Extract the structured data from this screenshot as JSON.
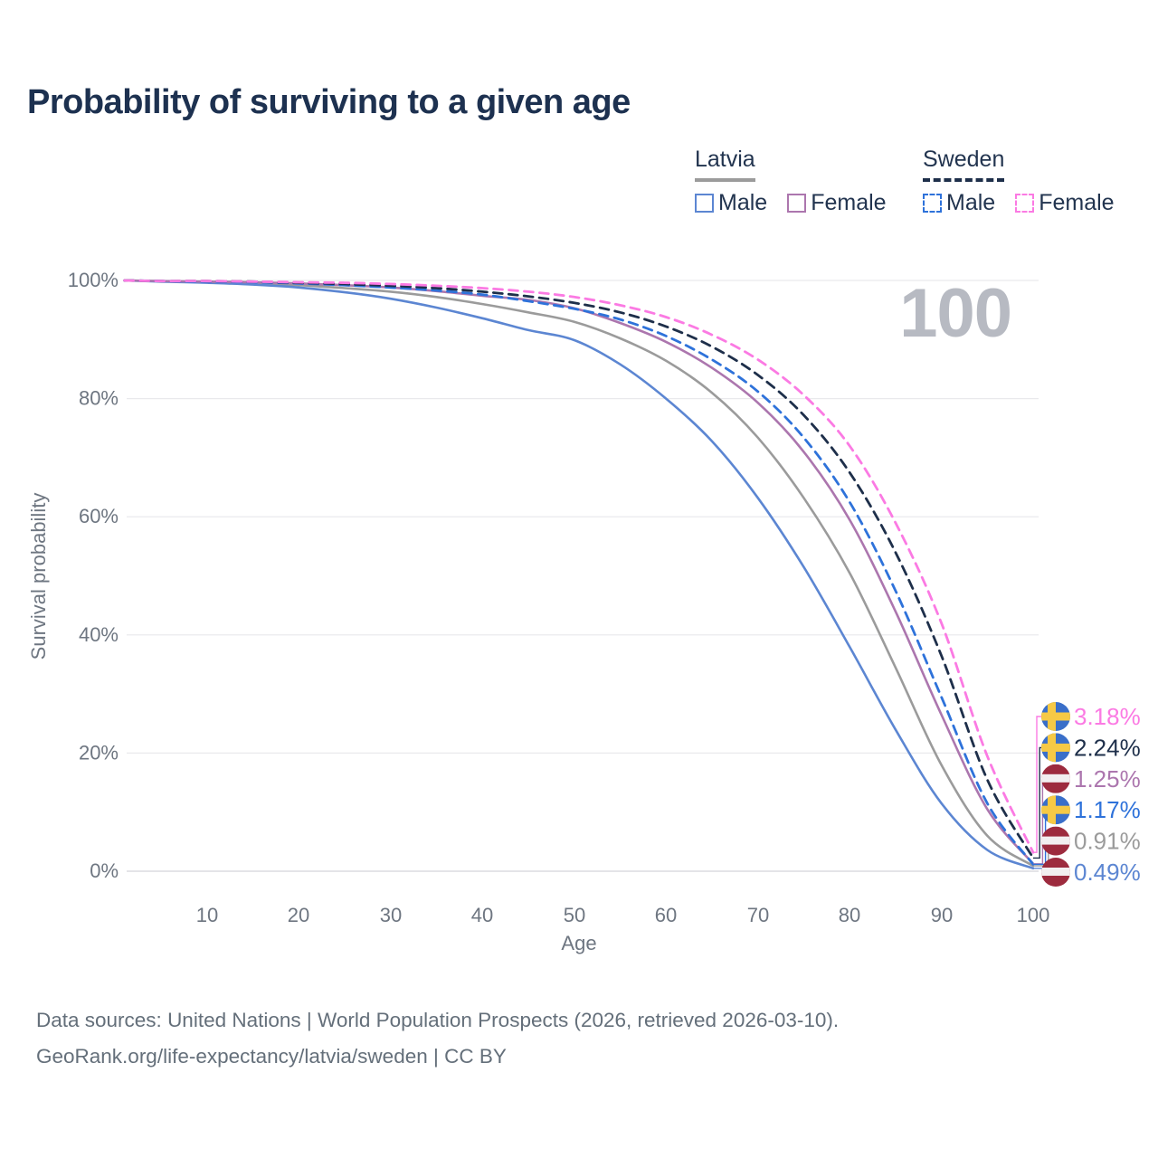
{
  "title": "Probability of surviving to a given age",
  "watermark": "100",
  "legend": {
    "latvia": {
      "country": "Latvia",
      "male": "Male",
      "female": "Female"
    },
    "sweden": {
      "country": "Sweden",
      "male": "Male",
      "female": "Female"
    }
  },
  "axes": {
    "y_label": "Survival probability",
    "x_label": "Age",
    "y_ticks": [
      "100%",
      "80%",
      "60%",
      "40%",
      "20%",
      "0%"
    ],
    "x_ticks": [
      "10",
      "20",
      "30",
      "40",
      "50",
      "60",
      "70",
      "80",
      "90",
      "100"
    ]
  },
  "footer": {
    "line1": "Data sources: United Nations | World Population Prospects (2026, retrieved 2026-03-10).",
    "line2": "GeoRank.org/life-expectancy/latvia/sweden | CC BY"
  },
  "colors": {
    "title_text": "#1d3150",
    "axis_text": "#6e7681",
    "gridline": "#e9e9ec",
    "watermark": "#b7bac2",
    "latvia_male": "#5c86d2",
    "latvia_total": "#9b9b9b",
    "latvia_female": "#ac76ae",
    "sweden_male": "#2e72da",
    "sweden_total": "#1e2f4a",
    "sweden_female": "#fb7ae3",
    "sweden_flag_blue": "#3a6fc9",
    "sweden_flag_yellow": "#f6c945",
    "latvia_flag_red": "#9d2b3e",
    "latvia_flag_white": "#f2eff0"
  },
  "chart_data": {
    "type": "line",
    "title": "Probability of surviving to a given age",
    "xlabel": "Age",
    "ylabel": "Survival probability",
    "xlim": [
      1,
      100
    ],
    "ylim": [
      0,
      100
    ],
    "grid": "horizontal",
    "legend_position": "top-right",
    "hover_age_indicator": "100",
    "x": [
      1,
      5,
      10,
      15,
      20,
      25,
      30,
      35,
      40,
      45,
      50,
      55,
      60,
      65,
      70,
      75,
      80,
      85,
      90,
      95,
      100
    ],
    "series": [
      {
        "name": "Latvia Total",
        "country": "Latvia",
        "sex": "Total",
        "style": "solid",
        "color": "#9b9b9b",
        "end_label": "0.91%",
        "end_value": 0.91,
        "flag": "latvia",
        "row": 4,
        "values": [
          100,
          99.9,
          99.7,
          99.5,
          99.2,
          98.7,
          98.1,
          97.2,
          96.0,
          94.6,
          93.0,
          90.2,
          86.4,
          81.0,
          73.4,
          63.2,
          50.5,
          34.5,
          18.0,
          6.0,
          0.91
        ]
      },
      {
        "name": "Latvia Male",
        "country": "Latvia",
        "sex": "Male",
        "style": "solid",
        "color": "#5c86d2",
        "end_label": "0.49%",
        "end_value": 0.49,
        "flag": "latvia",
        "row": 5,
        "values": [
          100,
          99.8,
          99.6,
          99.3,
          98.8,
          98.0,
          96.9,
          95.4,
          93.6,
          91.6,
          89.9,
          85.8,
          80.0,
          72.8,
          63.2,
          51.5,
          38.0,
          24.0,
          11.5,
          3.6,
          0.49
        ]
      },
      {
        "name": "Latvia Female",
        "country": "Latvia",
        "sex": "Female",
        "style": "solid",
        "color": "#ac76ae",
        "end_label": "1.25%",
        "end_value": 1.25,
        "flag": "latvia",
        "row": 2,
        "values": [
          100,
          99.9,
          99.8,
          99.7,
          99.5,
          99.2,
          98.8,
          98.2,
          97.4,
          96.7,
          95.3,
          92.8,
          89.6,
          85.2,
          79.3,
          71.0,
          59.5,
          44.0,
          26.5,
          10.5,
          1.25
        ]
      },
      {
        "name": "Sweden Male",
        "country": "Sweden",
        "sex": "Male",
        "style": "dashed",
        "color": "#2e72da",
        "end_label": "1.17%",
        "end_value": 1.17,
        "flag": "sweden",
        "row": 3,
        "values": [
          100,
          99.9,
          99.8,
          99.7,
          99.5,
          99.2,
          98.8,
          98.3,
          97.6,
          96.5,
          95.2,
          93.4,
          90.6,
          86.6,
          81.2,
          73.4,
          62.5,
          47.5,
          29.5,
          11.5,
          1.17
        ]
      },
      {
        "name": "Sweden Total",
        "country": "Sweden",
        "sex": "Total",
        "style": "dashed",
        "color": "#1e2f4a",
        "end_label": "2.24%",
        "end_value": 2.24,
        "flag": "sweden",
        "row": 1,
        "values": [
          100,
          99.9,
          99.9,
          99.8,
          99.6,
          99.4,
          99.1,
          98.7,
          98.1,
          97.3,
          96.2,
          94.6,
          92.2,
          88.8,
          84.0,
          77.2,
          67.5,
          54.0,
          36.5,
          15.5,
          2.24
        ]
      },
      {
        "name": "Sweden Female",
        "country": "Sweden",
        "sex": "Female",
        "style": "dashed",
        "color": "#fb7ae3",
        "end_label": "3.18%",
        "end_value": 3.18,
        "flag": "sweden",
        "row": 0,
        "values": [
          100,
          99.9,
          99.9,
          99.8,
          99.7,
          99.6,
          99.4,
          99.1,
          98.7,
          98.1,
          97.2,
          95.8,
          93.8,
          90.8,
          86.6,
          80.6,
          72.0,
          59.0,
          42.0,
          19.5,
          3.18
        ]
      }
    ]
  }
}
